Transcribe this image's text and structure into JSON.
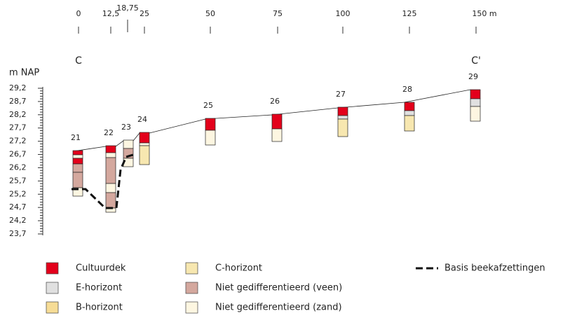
{
  "top_axis": {
    "ticks": [
      "0",
      "12,5",
      "18,75",
      "25",
      "50",
      "75",
      "100",
      "125",
      "150 m"
    ]
  },
  "section_labels": [
    "C",
    "C'"
  ],
  "y_axis": {
    "title": "m NAP",
    "labels": [
      "29,2",
      "28,7",
      "28,2",
      "27,7",
      "27,2",
      "26,7",
      "26,2",
      "25,7",
      "25,2",
      "24,7",
      "24,2",
      "23,7"
    ]
  },
  "boreholes": [
    "21",
    "22",
    "23",
    "24",
    "25",
    "26",
    "27",
    "28",
    "29"
  ],
  "legend": {
    "items": [
      {
        "label": "Cultuurdek"
      },
      {
        "label": "E-horizont"
      },
      {
        "label": "B-horizont"
      },
      {
        "label": "C-horizont"
      },
      {
        "label": "Niet gedifferentieerd (veen)"
      },
      {
        "label": "Niet gedifferentieerd (zand)"
      }
    ],
    "line_label": "Basis beekafzettingen"
  }
}
